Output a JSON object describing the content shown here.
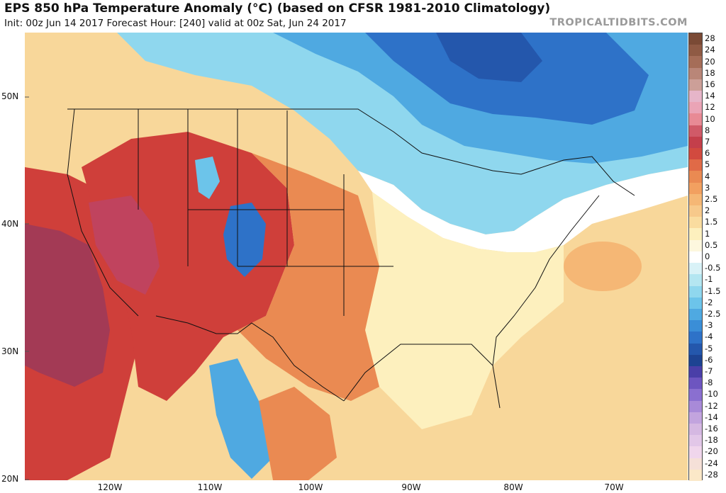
{
  "header": {
    "title": "EPS 850 hPa Temperature Anomaly (°C) (based on CFSR 1981-2010 Climatology)",
    "subtitle": "Init: 00z Jun 14 2017   Forecast Hour: [240]   valid at 00z Sat, Jun 24 2017",
    "brand": "TROPICALTIDBITS.COM"
  },
  "axes": {
    "lat_labels": [
      "50N",
      "40N",
      "30N",
      "20N"
    ],
    "lon_labels": [
      "120W",
      "110W",
      "100W",
      "90W",
      "80W",
      "70W"
    ]
  },
  "colorbar": {
    "labels": [
      "28",
      "24",
      "20",
      "18",
      "16",
      "14",
      "12",
      "10",
      "8",
      "7",
      "6",
      "5",
      "4",
      "3",
      "2.5",
      "2",
      "1.5",
      "1",
      "0.5",
      "0",
      "-0.5",
      "-1",
      "-1.5",
      "-2",
      "-2.5",
      "-3",
      "-4",
      "-5",
      "-6",
      "-7",
      "-8",
      "-10",
      "-12",
      "-14",
      "-16",
      "-18",
      "-20",
      "-24",
      "-28"
    ],
    "colors": [
      "#7a4a35",
      "#8f5a44",
      "#a56d58",
      "#b98678",
      "#cc9f98",
      "#e6b5c9",
      "#eaa4b6",
      "#e88a95",
      "#d05a68",
      "#c43f4b",
      "#d24a3f",
      "#e06a47",
      "#ea8a52",
      "#f2a060",
      "#f5b775",
      "#f7c98b",
      "#fadc9f",
      "#fdf0be",
      "#fdf7de",
      "#ffffff",
      "#d9f2f7",
      "#b4e6f1",
      "#8fd7ee",
      "#6cc4ea",
      "#4fa9e1",
      "#3a8ed7",
      "#2e72c8",
      "#2457ac",
      "#1d4392",
      "#4a3fa8",
      "#6d55c0",
      "#8a6fd0",
      "#a88ad8",
      "#c2a4de",
      "#d5b8e2",
      "#e2c7e8",
      "#f0d6ec",
      "#f5e0d8",
      "#fbe8c8"
    ]
  },
  "map_colors": {
    "ocean_warm": "#fbe7b0",
    "very_hot": "#a33a55",
    "hot": "#cf3f3a",
    "warm": "#ea8a52",
    "mild": "#f5b775",
    "cool": "#8fd7ee",
    "cold": "#4fa9e1",
    "very_cold": "#2457ac"
  }
}
